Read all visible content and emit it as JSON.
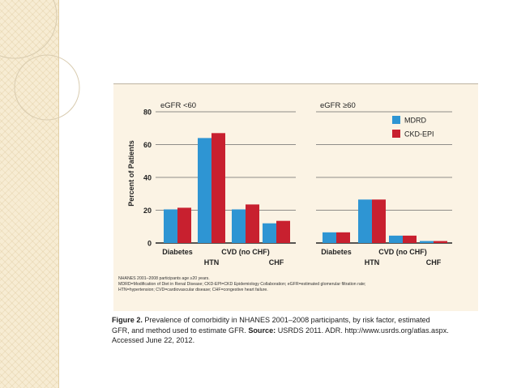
{
  "chart_data": [
    {
      "type": "bar",
      "title": "eGFR <60",
      "ylabel": "Percent of Patients",
      "ylim": [
        0,
        80
      ],
      "yticks": [
        "0",
        "20",
        "40",
        "60",
        "80"
      ],
      "categories": [
        "Diabetes",
        "HTN",
        "CVD (no CHF)",
        "CHF"
      ],
      "series": [
        {
          "name": "MDRD",
          "values": [
            20.5,
            64,
            20.5,
            12
          ]
        },
        {
          "name": "CKD-EPI",
          "values": [
            21.5,
            67,
            23.5,
            13.5
          ]
        }
      ]
    },
    {
      "type": "bar",
      "title": "eGFR ≥60",
      "ylim": [
        0,
        80
      ],
      "categories": [
        "Diabetes",
        "HTN",
        "CVD (no CHF)",
        "CHF"
      ],
      "series": [
        {
          "name": "MDRD",
          "values": [
            6.5,
            26.5,
            4.5,
            1.2
          ]
        },
        {
          "name": "CKD-EPI",
          "values": [
            6.5,
            26.5,
            4.5,
            1.2
          ]
        }
      ],
      "legend": "top-right"
    }
  ],
  "colors": {
    "mdrd": "#2e95d3",
    "ckd_epi": "#c8202f"
  },
  "notes": {
    "line1": "NHANES 2001–2008 participants age ≥20 years.",
    "line2": "MDRD=Modification of Diet in Renal Disease; CKD-EPI=CKD Epidemiology Collaboration; eGFR=estimated glomerular filtration rate;",
    "line3": "HTN=hypertension; CVD=cardiovascular disease; CHF=congestive heart failure."
  },
  "caption": {
    "label": "Figure 2.",
    "text1": " Prevalence of comorbidity in NHANES  2001–2008 participants, by risk factor,  estimated",
    "text2": "GFR, and method used to estimate GFR. ",
    "source_label": "Source:",
    "source_text": " USRDS 2011. ADR. http://www.usrds.org/atlas.aspx.",
    "text3": "Accessed June 22, 2012."
  }
}
